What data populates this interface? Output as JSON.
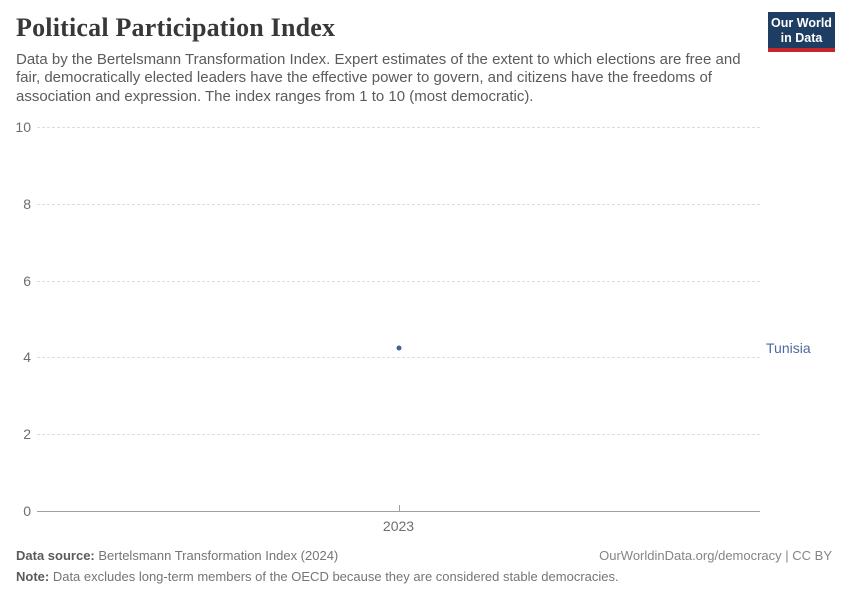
{
  "header": {
    "title": "Political Participation Index",
    "subtitle": "Data by the Bertelsmann Transformation Index. Expert estimates of the extent to which elections are free and fair, democratically elected leaders have the effective power to govern, and citizens have the freedoms of association and expression. The index ranges from 1 to 10 (most democratic)."
  },
  "logo": {
    "line1": "Our World",
    "line2": "in Data",
    "bg_color": "#1d3d63",
    "accent_color": "#c7252c"
  },
  "chart_data": {
    "type": "scatter",
    "title": "Political Participation Index",
    "x": [
      2023
    ],
    "xtick_labels": [
      "2023"
    ],
    "series": [
      {
        "name": "Tunisia",
        "values": [
          4.25
        ],
        "color": "#4c6a9c",
        "point_color": "#3d639c"
      }
    ],
    "ylim": [
      0,
      10
    ],
    "yticks": [
      0,
      2,
      4,
      6,
      8,
      10
    ],
    "grid": "horizontal-dashed",
    "legend_position": "right-entity-label",
    "xlabel": "",
    "ylabel": ""
  },
  "footer": {
    "datasource_label": "Data source:",
    "datasource_value": " Bertelsmann Transformation Index (2024)",
    "credit": "OurWorldinData.org/democracy | CC BY",
    "note_label": "Note:",
    "note_value": " Data excludes long-term members of the OECD because they are considered stable democracies."
  }
}
